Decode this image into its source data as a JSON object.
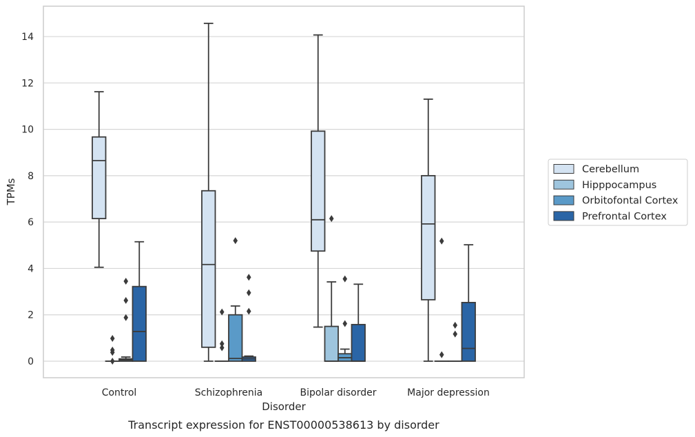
{
  "chart_data": {
    "type": "boxplot",
    "caption": "Transcript expression for ENST00000538613 by disorder",
    "xlabel": "Disorder",
    "ylabel": "TPMs",
    "ylim": [
      -0.7,
      15.3
    ],
    "yticks": [
      0,
      2,
      4,
      6,
      8,
      10,
      12,
      14
    ],
    "grid": true,
    "legend_position": "right",
    "categories": [
      "Control",
      "Schizophrenia",
      "Bipolar disorder",
      "Major depression"
    ],
    "series": [
      {
        "name": "Cerebellum",
        "color": "#d4e3f2",
        "boxes": [
          {
            "whisker_low": 4.05,
            "q1": 6.15,
            "median": 8.65,
            "q3": 9.67,
            "whisker_high": 11.62,
            "outliers": []
          },
          {
            "whisker_low": 0.0,
            "q1": 0.6,
            "median": 4.17,
            "q3": 7.35,
            "whisker_high": 14.57,
            "outliers": []
          },
          {
            "whisker_low": 1.47,
            "q1": 4.75,
            "median": 6.1,
            "q3": 9.92,
            "whisker_high": 14.07,
            "outliers": []
          },
          {
            "whisker_low": 0.0,
            "q1": 2.65,
            "median": 5.92,
            "q3": 8.0,
            "whisker_high": 11.3,
            "outliers": []
          }
        ]
      },
      {
        "name": "Hipppocampus",
        "color": "#9ec5de",
        "boxes": [
          {
            "whisker_low": 0.0,
            "q1": 0.0,
            "median": 0.0,
            "q3": 0.0,
            "whisker_high": 0.0,
            "outliers": [
              0.0,
              0.38,
              0.48,
              0.98
            ]
          },
          {
            "whisker_low": 0.0,
            "q1": 0.0,
            "median": 0.0,
            "q3": 0.0,
            "whisker_high": 0.0,
            "outliers": [
              0.58,
              0.75,
              2.12
            ]
          },
          {
            "whisker_low": 0.0,
            "q1": 0.0,
            "median": 0.0,
            "q3": 1.5,
            "whisker_high": 3.42,
            "outliers": [
              6.15
            ]
          },
          {
            "whisker_low": 0.0,
            "q1": 0.0,
            "median": 0.0,
            "q3": 0.0,
            "whisker_high": 0.0,
            "outliers": [
              0.28,
              5.18
            ]
          }
        ]
      },
      {
        "name": "Orbitofontal Cortex",
        "color": "#5a9ac8",
        "boxes": [
          {
            "whisker_low": 0.0,
            "q1": 0.0,
            "median": 0.05,
            "q3": 0.1,
            "whisker_high": 0.18,
            "outliers": [
              1.88,
              2.62,
              3.45
            ]
          },
          {
            "whisker_low": 0.0,
            "q1": 0.0,
            "median": 0.12,
            "q3": 2.0,
            "whisker_high": 2.38,
            "outliers": [
              5.2
            ]
          },
          {
            "whisker_low": 0.0,
            "q1": 0.0,
            "median": 0.15,
            "q3": 0.32,
            "whisker_high": 0.52,
            "outliers": [
              1.62,
              3.55
            ]
          },
          {
            "whisker_low": 0.0,
            "q1": 0.0,
            "median": 0.0,
            "q3": 0.0,
            "whisker_high": 0.0,
            "outliers": [
              1.17,
              1.55
            ]
          }
        ]
      },
      {
        "name": "Prefrontal Cortex",
        "color": "#2a65a6",
        "boxes": [
          {
            "whisker_low": 0.0,
            "q1": 0.0,
            "median": 1.28,
            "q3": 3.22,
            "whisker_high": 5.15,
            "outliers": []
          },
          {
            "whisker_low": 0.0,
            "q1": 0.0,
            "median": 0.1,
            "q3": 0.18,
            "whisker_high": 0.22,
            "outliers": [
              2.15,
              2.95,
              3.62
            ]
          },
          {
            "whisker_low": 0.0,
            "q1": 0.0,
            "median": 0.0,
            "q3": 1.58,
            "whisker_high": 3.32,
            "outliers": []
          },
          {
            "whisker_low": 0.0,
            "q1": 0.0,
            "median": 0.55,
            "q3": 2.53,
            "whisker_high": 5.02,
            "outliers": []
          }
        ]
      }
    ]
  }
}
